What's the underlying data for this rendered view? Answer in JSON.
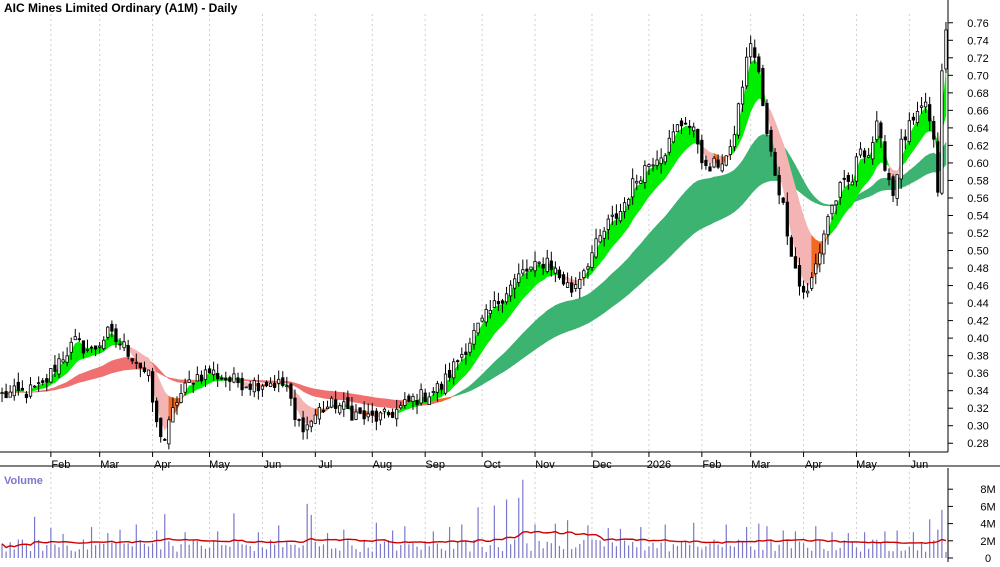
{
  "title": "AIC Mines Limited Ordinary (A1M) - Daily",
  "volume_title": "Volume",
  "colors": {
    "band_bull": "#00ee00",
    "band_bear_strong": "#f06a22",
    "band_bear_light": "#f4b4b4",
    "band_red": "#f07070",
    "long_band": "#3cb371",
    "volume_bar": "#7a78c8",
    "volume_avg": "#cc0000",
    "candle": "#000000",
    "grid": "#cfcfcf",
    "volume_title": "#7a78c8"
  },
  "chart_data": [
    {
      "type": "line",
      "name": "price",
      "description_kind": "candlestick",
      "title": "AIC Mines Limited Ordinary (A1M) - Daily",
      "xlabel": "",
      "ylabel": "",
      "ylim": [
        0.27,
        0.77
      ],
      "y_ticks": [
        "0.28",
        "0.30",
        "0.32",
        "0.34",
        "0.36",
        "0.38",
        "0.40",
        "0.42",
        "0.44",
        "0.46",
        "0.48",
        "0.50",
        "0.52",
        "0.54",
        "0.56",
        "0.58",
        "0.60",
        "0.62",
        "0.64",
        "0.66",
        "0.68",
        "0.70",
        "0.72",
        "0.74",
        "0.76"
      ],
      "x_ticks": [
        {
          "label": "Feb",
          "day": 12
        },
        {
          "label": "Mar",
          "day": 24
        },
        {
          "label": "Apr",
          "day": 37
        },
        {
          "label": "May",
          "day": 51
        },
        {
          "label": "Jun",
          "day": 64
        },
        {
          "label": "Jul",
          "day": 77
        },
        {
          "label": "Aug",
          "day": 91
        },
        {
          "label": "Sep",
          "day": 104
        },
        {
          "label": "Oct",
          "day": 118
        },
        {
          "label": "Nov",
          "day": 131
        },
        {
          "label": "Dec",
          "day": 145
        },
        {
          "label": "2026",
          "day": 159
        },
        {
          "label": "Feb",
          "day": 172
        },
        {
          "label": "Mar",
          "day": 184
        },
        {
          "label": "Apr",
          "day": 197
        },
        {
          "label": "May",
          "day": 210
        },
        {
          "label": "Jun",
          "day": 223
        }
      ],
      "days": 232,
      "close_anchors": [
        [
          0,
          0.335
        ],
        [
          6,
          0.338
        ],
        [
          10,
          0.345
        ],
        [
          14,
          0.375
        ],
        [
          18,
          0.395
        ],
        [
          22,
          0.385
        ],
        [
          26,
          0.405
        ],
        [
          30,
          0.39
        ],
        [
          33,
          0.375
        ],
        [
          36,
          0.355
        ],
        [
          38,
          0.3
        ],
        [
          40,
          0.285
        ],
        [
          43,
          0.33
        ],
        [
          47,
          0.355
        ],
        [
          51,
          0.362
        ],
        [
          56,
          0.352
        ],
        [
          61,
          0.348
        ],
        [
          66,
          0.35
        ],
        [
          70,
          0.345
        ],
        [
          72,
          0.305
        ],
        [
          75,
          0.3
        ],
        [
          78,
          0.318
        ],
        [
          82,
          0.325
        ],
        [
          86,
          0.315
        ],
        [
          90,
          0.308
        ],
        [
          94,
          0.31
        ],
        [
          98,
          0.32
        ],
        [
          101,
          0.33
        ],
        [
          104,
          0.335
        ],
        [
          108,
          0.345
        ],
        [
          112,
          0.375
        ],
        [
          116,
          0.405
        ],
        [
          120,
          0.43
        ],
        [
          124,
          0.455
        ],
        [
          128,
          0.475
        ],
        [
          131,
          0.48
        ],
        [
          134,
          0.49
        ],
        [
          137,
          0.47
        ],
        [
          140,
          0.455
        ],
        [
          143,
          0.48
        ],
        [
          146,
          0.505
        ],
        [
          149,
          0.53
        ],
        [
          152,
          0.545
        ],
        [
          155,
          0.575
        ],
        [
          158,
          0.595
        ],
        [
          161,
          0.61
        ],
        [
          163,
          0.615
        ],
        [
          166,
          0.64
        ],
        [
          168,
          0.65
        ],
        [
          171,
          0.625
        ],
        [
          173,
          0.59
        ],
        [
          176,
          0.6
        ],
        [
          179,
          0.61
        ],
        [
          182,
          0.69
        ],
        [
          184,
          0.74
        ],
        [
          186,
          0.7
        ],
        [
          188,
          0.63
        ],
        [
          190,
          0.59
        ],
        [
          192,
          0.55
        ],
        [
          194,
          0.5
        ],
        [
          196,
          0.46
        ],
        [
          198,
          0.45
        ],
        [
          201,
          0.5
        ],
        [
          203,
          0.54
        ],
        [
          206,
          0.57
        ],
        [
          209,
          0.58
        ],
        [
          211,
          0.62
        ],
        [
          213,
          0.61
        ],
        [
          215,
          0.64
        ],
        [
          217,
          0.6
        ],
        [
          219,
          0.565
        ],
        [
          221,
          0.62
        ],
        [
          223,
          0.64
        ],
        [
          225,
          0.65
        ],
        [
          227,
          0.67
        ],
        [
          229,
          0.62
        ],
        [
          230,
          0.57
        ],
        [
          231,
          0.7
        ],
        [
          232,
          0.75
        ]
      ],
      "short_band": {
        "fast_span": 3,
        "slow_span": 12
      },
      "long_band": {
        "fast_span": 30,
        "slow_span": 60,
        "start_day": 107
      }
    },
    {
      "type": "bar",
      "name": "volume",
      "title": "Volume",
      "ylim": [
        0,
        10000000
      ],
      "y_ticks": [
        "0",
        "2M",
        "4M",
        "6M",
        "8M"
      ],
      "moving_average_span": 20,
      "spikes": [
        [
          8,
          4800000
        ],
        [
          12,
          3500000
        ],
        [
          15,
          2800000
        ],
        [
          22,
          3600000
        ],
        [
          26,
          2900000
        ],
        [
          29,
          3300000
        ],
        [
          33,
          3900000
        ],
        [
          38,
          3200000
        ],
        [
          40,
          5100000
        ],
        [
          45,
          3000000
        ],
        [
          53,
          3100000
        ],
        [
          57,
          5200000
        ],
        [
          63,
          3000000
        ],
        [
          68,
          3800000
        ],
        [
          75,
          6300000
        ],
        [
          76,
          5000000
        ],
        [
          80,
          2900000
        ],
        [
          84,
          3300000
        ],
        [
          92,
          4100000
        ],
        [
          96,
          3200000
        ],
        [
          99,
          3700000
        ],
        [
          106,
          3100000
        ],
        [
          110,
          3600000
        ],
        [
          113,
          3900000
        ],
        [
          117,
          5900000
        ],
        [
          121,
          6100000
        ],
        [
          124,
          6800000
        ],
        [
          127,
          7000000
        ],
        [
          128,
          9100000
        ],
        [
          131,
          3900000
        ],
        [
          136,
          4000000
        ],
        [
          139,
          4400000
        ],
        [
          144,
          3800000
        ],
        [
          149,
          3500000
        ],
        [
          152,
          3400000
        ],
        [
          157,
          3600000
        ],
        [
          163,
          3900000
        ],
        [
          170,
          4100000
        ],
        [
          178,
          3900000
        ],
        [
          183,
          3600000
        ],
        [
          186,
          4000000
        ],
        [
          188,
          3700000
        ],
        [
          192,
          3200000
        ],
        [
          195,
          3100000
        ],
        [
          200,
          3700000
        ],
        [
          204,
          3000000
        ],
        [
          208,
          2900000
        ],
        [
          212,
          3000000
        ],
        [
          217,
          3100000
        ],
        [
          220,
          3200000
        ],
        [
          224,
          3000000
        ],
        [
          228,
          4500000
        ],
        [
          230,
          3300000
        ],
        [
          231,
          5600000
        ]
      ]
    }
  ]
}
